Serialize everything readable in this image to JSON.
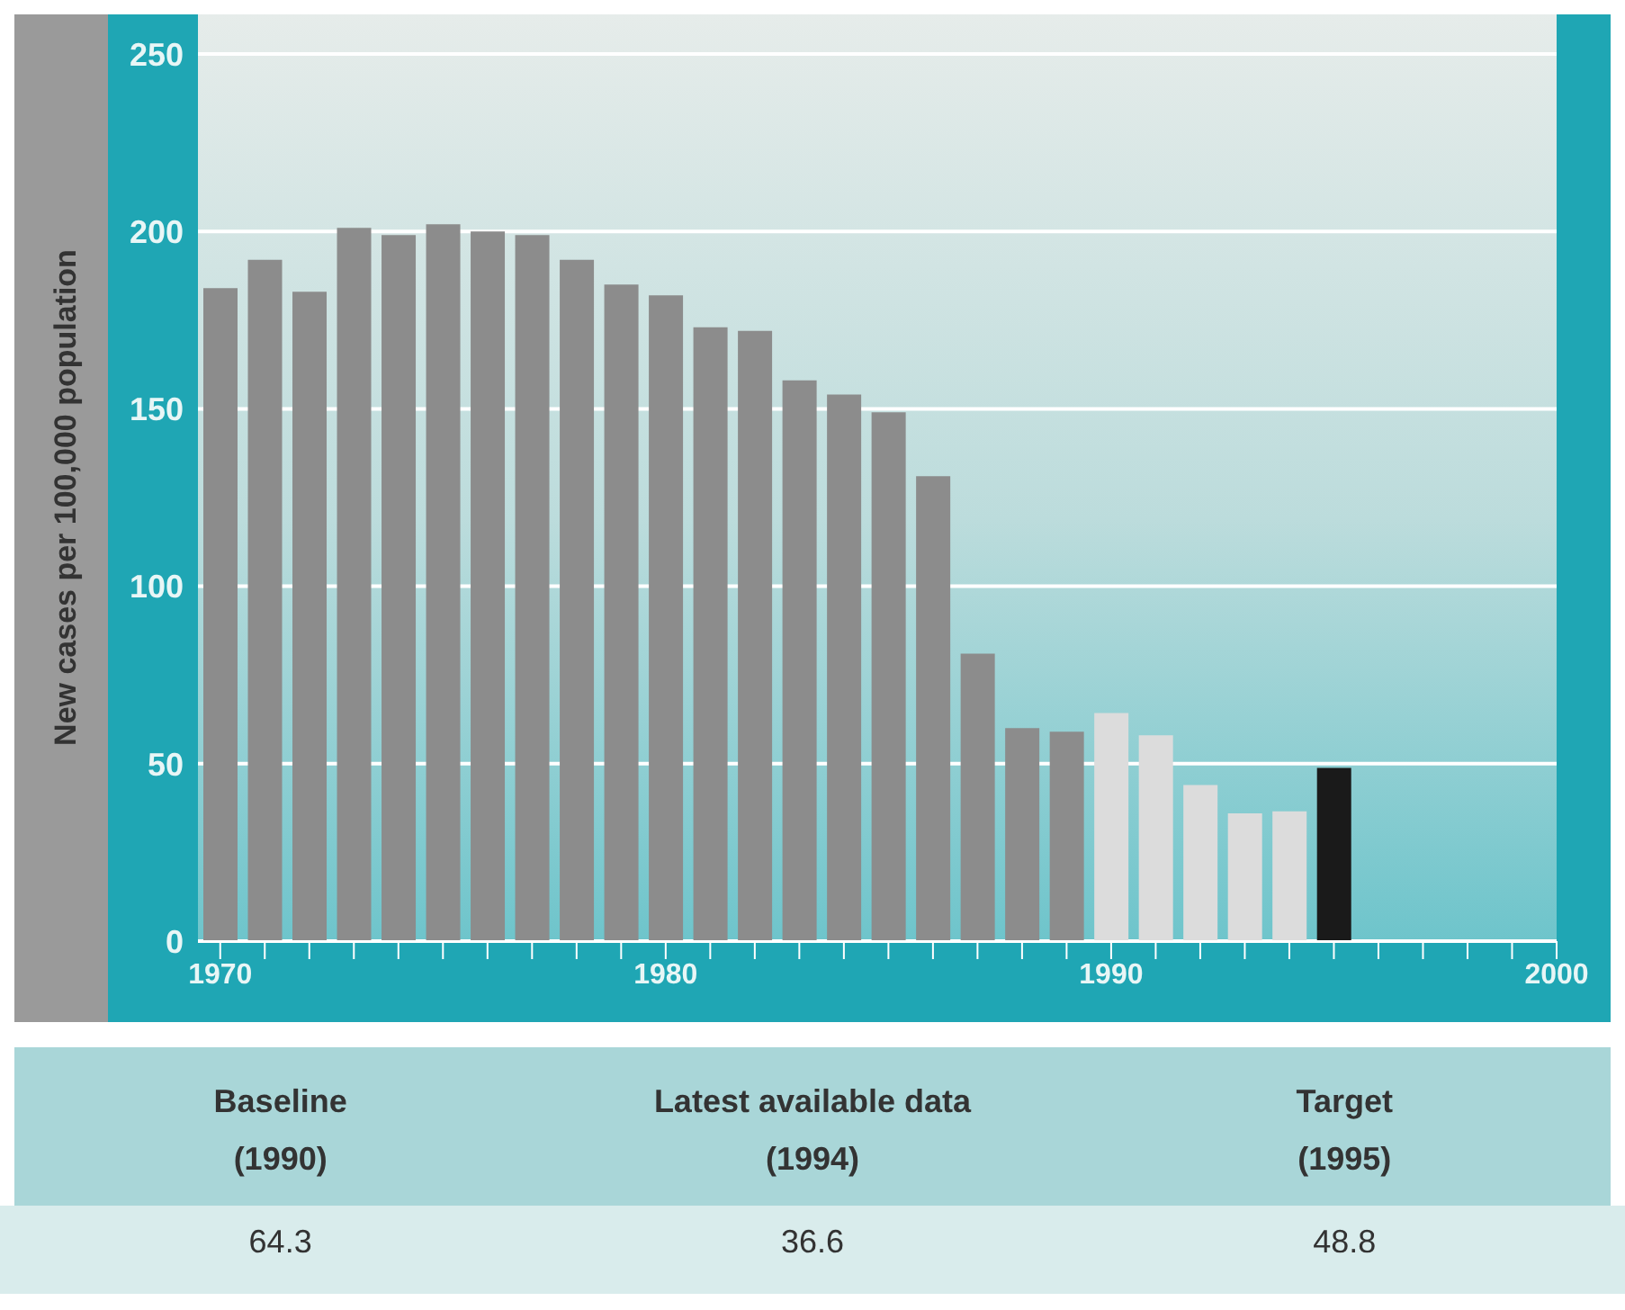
{
  "chart_data": {
    "type": "bar",
    "ylabel": "New cases per 100,000 population",
    "x": [
      1970,
      1971,
      1972,
      1973,
      1974,
      1975,
      1976,
      1977,
      1978,
      1979,
      1980,
      1981,
      1982,
      1983,
      1984,
      1985,
      1986,
      1987,
      1988,
      1989,
      1990,
      1991,
      1992,
      1993,
      1994,
      1995
    ],
    "values": [
      184,
      192,
      183,
      201,
      199,
      202,
      200,
      199,
      192,
      185,
      182,
      173,
      172,
      158,
      154,
      149,
      131,
      81,
      60,
      59,
      64.3,
      58,
      44,
      36,
      36.6,
      48.8
    ],
    "colors": [
      "#8c8c8c",
      "#8c8c8c",
      "#8c8c8c",
      "#8c8c8c",
      "#8c8c8c",
      "#8c8c8c",
      "#8c8c8c",
      "#8c8c8c",
      "#8c8c8c",
      "#8c8c8c",
      "#8c8c8c",
      "#8c8c8c",
      "#8c8c8c",
      "#8c8c8c",
      "#8c8c8c",
      "#8c8c8c",
      "#8c8c8c",
      "#8c8c8c",
      "#8c8c8c",
      "#8c8c8c",
      "#dcdcdc",
      "#dcdcdc",
      "#dcdcdc",
      "#dcdcdc",
      "#dcdcdc",
      "#1a1a1a"
    ],
    "annotations": [
      "Baseline (1990)",
      "64.3",
      "Latest available data (1994)",
      "36.6",
      "Target (1995)",
      "48.8"
    ],
    "xlim": [
      1969.5,
      2000
    ],
    "xticks": [
      1970,
      {
        "value": 1971,
        "label": null
      },
      {
        "value": 1972,
        "label": null
      },
      {
        "value": 1973,
        "label": null
      },
      {
        "value": 1974,
        "label": null
      },
      {
        "value": 1975,
        "label": null
      },
      {
        "value": 1976,
        "label": null
      },
      {
        "value": 1977,
        "label": null
      },
      {
        "value": 1978,
        "label": null
      },
      {
        "value": 1979,
        "label": null
      },
      1980,
      {
        "value": 1981,
        "label": null
      },
      {
        "value": 1982,
        "label": null
      },
      {
        "value": 1983,
        "label": null
      },
      {
        "value": 1984,
        "label": null
      },
      {
        "value": 1985,
        "label": null
      },
      {
        "value": 1986,
        "label": null
      },
      {
        "value": 1987,
        "label": null
      },
      {
        "value": 1988,
        "label": null
      },
      {
        "value": 1989,
        "label": null
      },
      1990,
      {
        "value": 1991,
        "label": null
      },
      {
        "value": 1992,
        "label": null
      },
      {
        "value": 1993,
        "label": null
      },
      {
        "value": 1994,
        "label": null
      },
      {
        "value": 1995,
        "label": null
      },
      {
        "value": 1996,
        "label": null
      },
      {
        "value": 1997,
        "label": null
      },
      {
        "value": 1998,
        "label": null
      },
      {
        "value": 1999,
        "label": null
      },
      2000
    ],
    "ylim": [
      0,
      250
    ],
    "yticks": [
      0,
      50,
      100,
      150,
      200,
      250
    ],
    "grid": "y"
  }
}
